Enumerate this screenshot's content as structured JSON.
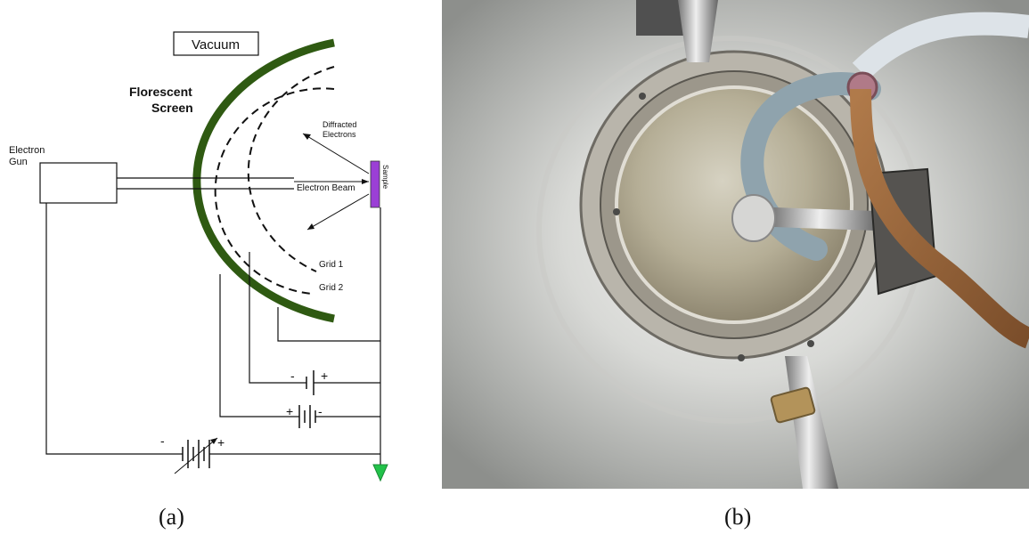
{
  "diagram": {
    "labels": {
      "vacuum": "Vacuum",
      "screen_line1": "Florescent",
      "screen_line2": "Screen",
      "gun_line1": "Electron",
      "gun_line2": "Gun",
      "diffracted_line1": "Diffracted",
      "diffracted_line2": "Electrons",
      "electron_beam": "Electron Beam",
      "sample": "Sample",
      "grid1": "Grid 1",
      "grid2": "Grid 2",
      "battery1_minus": "-",
      "battery1_plus": "+",
      "battery2_plus": "+",
      "battery2_minus": "-",
      "battery3_minus": "-",
      "battery3_plus": "+"
    },
    "colors": {
      "screen": "#2f5a12",
      "sample": "#9b3fd6",
      "ground": "#22c24a",
      "wire": "#222222"
    }
  },
  "photo": {
    "description_icon": "leed-chamber-photo"
  },
  "captions": {
    "a": "(a)",
    "b": "(b)"
  }
}
